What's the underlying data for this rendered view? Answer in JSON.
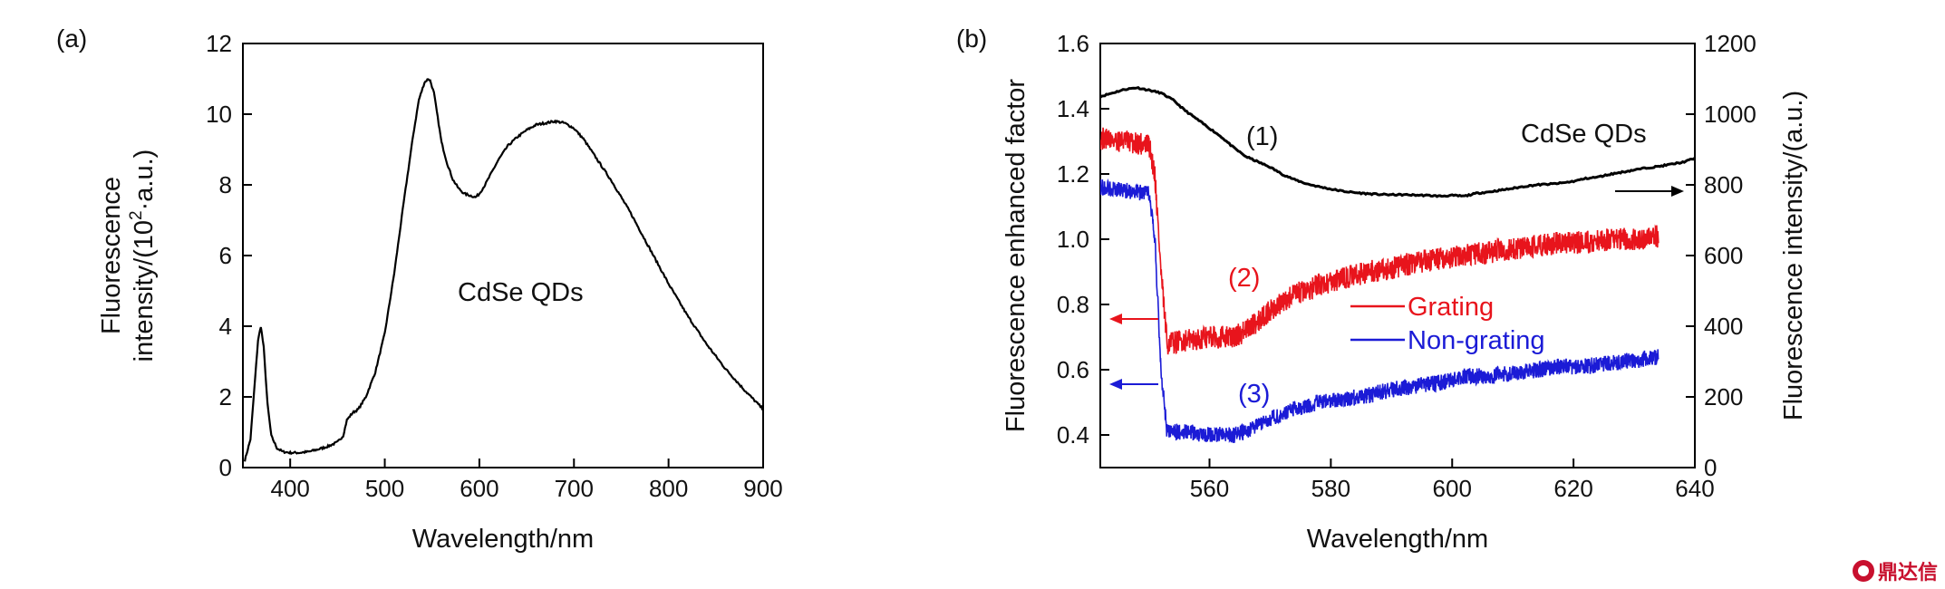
{
  "chart_data": [
    {
      "type": "line",
      "panel_label": "(a)",
      "xlabel": "Wavelength/nm",
      "ylabel_line1": "Fluorescence",
      "ylabel_line2_pre": "intensity/(10",
      "ylabel_line2_sup": "2",
      "ylabel_line2_post": "·a.u.)",
      "xlim": [
        350,
        900
      ],
      "ylim": [
        0,
        12
      ],
      "xticks": [
        "400",
        "500",
        "600",
        "700",
        "800",
        "900"
      ],
      "yticks": [
        "0",
        "2",
        "4",
        "6",
        "8",
        "10",
        "12"
      ],
      "annotation": "CdSe QDs",
      "series": [
        {
          "color": "#000000",
          "x": [
            352,
            358,
            362,
            366,
            369,
            372,
            376,
            380,
            386,
            392,
            400,
            410,
            420,
            430,
            440,
            450,
            456,
            460,
            466,
            472,
            480,
            490,
            500,
            510,
            520,
            530,
            536,
            542,
            546,
            548,
            552,
            556,
            560,
            566,
            572,
            578,
            584,
            590,
            596,
            600,
            606,
            612,
            620,
            630,
            640,
            650,
            660,
            670,
            680,
            690,
            700,
            710,
            720,
            740,
            760,
            780,
            800,
            820,
            840,
            860,
            880,
            900
          ],
          "y": [
            0.2,
            0.8,
            2.2,
            3.6,
            4.0,
            3.4,
            1.8,
            0.9,
            0.55,
            0.45,
            0.42,
            0.42,
            0.45,
            0.52,
            0.6,
            0.72,
            0.9,
            1.35,
            1.55,
            1.65,
            2.0,
            2.7,
            3.8,
            5.5,
            7.5,
            9.4,
            10.4,
            10.9,
            11.0,
            10.95,
            10.6,
            9.9,
            9.2,
            8.6,
            8.15,
            7.9,
            7.75,
            7.7,
            7.65,
            7.75,
            8.0,
            8.3,
            8.7,
            9.1,
            9.35,
            9.55,
            9.7,
            9.75,
            9.8,
            9.75,
            9.6,
            9.3,
            8.9,
            8.1,
            7.2,
            6.2,
            5.2,
            4.3,
            3.5,
            2.8,
            2.2,
            1.65
          ]
        }
      ]
    },
    {
      "type": "line",
      "panel_label": "(b)",
      "xlabel": "Wavelength/nm",
      "ylabel": "Fluorescence enhanced factor",
      "y2label": "Fluorescence intensity/(a.u.)",
      "xlim": [
        542,
        640
      ],
      "ylim": [
        0.3,
        1.6
      ],
      "y2lim": [
        0,
        1200
      ],
      "xticks": [
        "560",
        "580",
        "600",
        "620",
        "640"
      ],
      "yticks": [
        "0.4",
        "0.6",
        "0.8",
        "1.0",
        "1.2",
        "1.4",
        "1.6"
      ],
      "y2ticks": [
        "0",
        "200",
        "400",
        "600",
        "800",
        "1000",
        "1200"
      ],
      "annotation": "CdSe QDs",
      "legend": [
        {
          "label": "Grating",
          "color": "#e8141c"
        },
        {
          "label": "Non-grating",
          "color": "#1b1bd6"
        }
      ],
      "series": [
        {
          "label": "(1)",
          "color": "#000000",
          "axis": "right",
          "x": [
            542,
            544,
            546,
            548,
            550,
            552,
            554,
            556,
            558,
            560,
            562,
            564,
            566,
            568,
            570,
            572,
            574,
            576,
            578,
            580,
            582,
            584,
            586,
            588,
            590,
            592,
            594,
            596,
            598,
            600,
            602,
            604,
            606,
            608,
            610,
            612,
            614,
            616,
            618,
            620,
            622,
            624,
            626,
            628,
            630,
            632,
            634,
            636,
            638,
            640
          ],
          "y": [
            1050,
            1060,
            1070,
            1075,
            1068,
            1060,
            1040,
            1010,
            985,
            960,
            935,
            905,
            880,
            865,
            850,
            830,
            815,
            803,
            795,
            788,
            782,
            778,
            775,
            773,
            772,
            772,
            771,
            770,
            768,
            770,
            768,
            776,
            780,
            785,
            790,
            796,
            800,
            802,
            805,
            810,
            818,
            822,
            830,
            836,
            842,
            848,
            852,
            858,
            864,
            875
          ]
        },
        {
          "label": "(2)",
          "color": "#e8141c",
          "axis": "left",
          "x": [
            542,
            546,
            550,
            551,
            552,
            553,
            556,
            560,
            564,
            566,
            570,
            574,
            578,
            582,
            586,
            590,
            594,
            598,
            602,
            606,
            610,
            614,
            618,
            622,
            626,
            630,
            634
          ],
          "y": [
            1.31,
            1.3,
            1.29,
            1.2,
            0.9,
            0.68,
            0.69,
            0.7,
            0.7,
            0.72,
            0.78,
            0.83,
            0.86,
            0.88,
            0.9,
            0.91,
            0.93,
            0.94,
            0.95,
            0.96,
            0.97,
            0.98,
            0.99,
            0.99,
            1.0,
            1.0,
            1.01
          ]
        },
        {
          "label": "(3)",
          "color": "#1b1bd6",
          "axis": "left",
          "x": [
            542,
            546,
            550,
            551,
            552,
            553,
            556,
            560,
            564,
            566,
            570,
            574,
            578,
            582,
            586,
            590,
            594,
            598,
            602,
            606,
            610,
            614,
            618,
            622,
            626,
            630,
            634
          ],
          "y": [
            1.16,
            1.15,
            1.14,
            1.0,
            0.6,
            0.41,
            0.41,
            0.4,
            0.4,
            0.41,
            0.45,
            0.48,
            0.5,
            0.51,
            0.52,
            0.54,
            0.55,
            0.56,
            0.58,
            0.58,
            0.59,
            0.6,
            0.61,
            0.61,
            0.62,
            0.63,
            0.64
          ]
        }
      ]
    }
  ],
  "watermark": {
    "text": "鼎达信"
  }
}
